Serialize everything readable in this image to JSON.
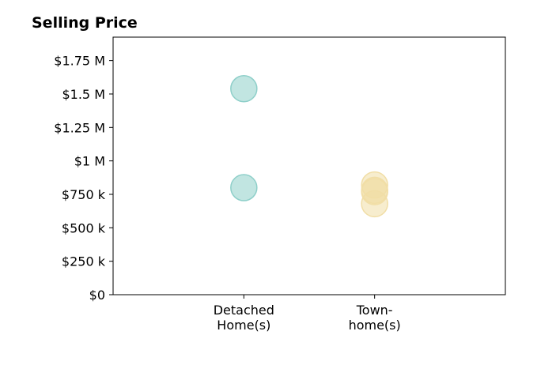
{
  "chart_data": {
    "type": "scatter",
    "title": "Selling Price",
    "xlabel": "",
    "ylabel": "",
    "ylim": [
      0,
      1925000
    ],
    "xlim": [
      -1,
      2
    ],
    "grid": false,
    "y_ticks": [
      {
        "value": 0,
        "label": "$0"
      },
      {
        "value": 250000,
        "label": "$250 k"
      },
      {
        "value": 500000,
        "label": "$500 k"
      },
      {
        "value": 750000,
        "label": "$750 k"
      },
      {
        "value": 1000000,
        "label": "$1 M"
      },
      {
        "value": 1250000,
        "label": "$1.25 M"
      },
      {
        "value": 1500000,
        "label": "$1.5 M"
      },
      {
        "value": 1750000,
        "label": "$1.75 M"
      }
    ],
    "categories": [
      {
        "position": 0,
        "lines": [
          "Detached",
          "Home(s)"
        ]
      },
      {
        "position": 1,
        "lines": [
          "Town-",
          "home(s)"
        ]
      }
    ],
    "series": [
      {
        "color": "#8ecfc9",
        "points": [
          {
            "x": 0,
            "y": 1540000
          },
          {
            "x": 0,
            "y": 800000
          }
        ]
      },
      {
        "color": "#f1dea6",
        "points": [
          {
            "x": 1,
            "y": 820000
          },
          {
            "x": 1,
            "y": 770000
          },
          {
            "x": 1,
            "y": 780000
          },
          {
            "x": 1,
            "y": 680000
          }
        ]
      }
    ]
  }
}
